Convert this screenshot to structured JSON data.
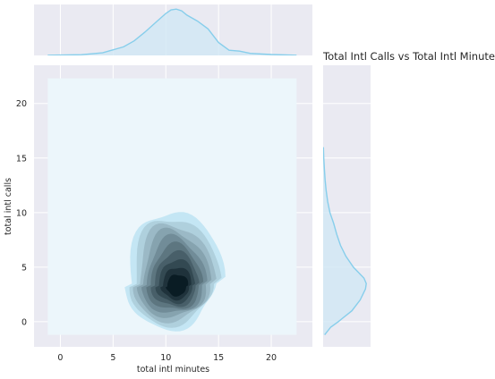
{
  "chart_data": {
    "type": "kde_joint",
    "title": "Total Intl Calls vs Total Intl Minutes",
    "xlabel": "total intl minutes",
    "ylabel": "total intl calls",
    "xlim": [
      -2.5,
      23.9
    ],
    "ylim": [
      -2.3,
      23.5
    ],
    "xticks": [
      "0",
      "5",
      "10",
      "15",
      "20"
    ],
    "yticks": [
      "0",
      "5",
      "10",
      "15",
      "20"
    ],
    "kde_fill_range": {
      "x": [
        -1.2,
        22.4
      ],
      "y": [
        -1.2,
        22.3
      ]
    },
    "density_peak": {
      "x": 10.9,
      "y": 3.2
    },
    "contour_levels": 10,
    "colors": {
      "background": "#eaeaf2",
      "grid": "#ffffff",
      "kde_fill": "#ecf6fb",
      "contour_light": "#c4e6f4",
      "contour_dark": "#0a1c24",
      "marginal_line": "#87ceeb",
      "marginal_fill": "#cfe7f4"
    },
    "marginal_x": {
      "x": [
        -1.2,
        2,
        4,
        6,
        7,
        8,
        9,
        10,
        10.5,
        11,
        11.5,
        12,
        13,
        14,
        15,
        16,
        17,
        18,
        20,
        22.4
      ],
      "density": [
        0.001,
        0.004,
        0.015,
        0.05,
        0.085,
        0.135,
        0.19,
        0.245,
        0.265,
        0.27,
        0.26,
        0.235,
        0.2,
        0.155,
        0.075,
        0.03,
        0.025,
        0.012,
        0.005,
        0.001
      ]
    },
    "marginal_y": {
      "y": [
        -1.2,
        -0.5,
        0,
        1,
        2,
        3,
        3.5,
        4,
        5,
        6,
        7,
        8,
        9,
        10,
        11,
        12,
        13,
        14,
        15,
        16
      ],
      "density": [
        0.01,
        0.05,
        0.1,
        0.19,
        0.245,
        0.28,
        0.285,
        0.27,
        0.2,
        0.15,
        0.115,
        0.09,
        0.07,
        0.045,
        0.03,
        0.02,
        0.013,
        0.008,
        0.004,
        0.002
      ]
    }
  }
}
